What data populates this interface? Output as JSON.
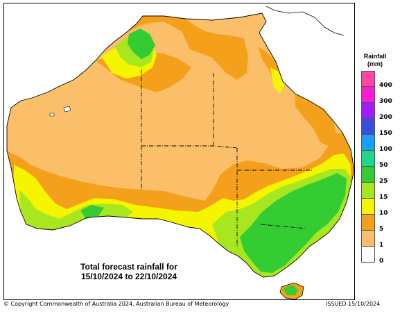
{
  "legend": {
    "title_line1": "Rainfall",
    "title_line2": "(mm)",
    "items": [
      {
        "label": "400",
        "color": "#ff47a3"
      },
      {
        "label": "300",
        "color": "#ff1ad9"
      },
      {
        "label": "200",
        "color": "#a31aff"
      },
      {
        "label": "150",
        "color": "#3d4ce0"
      },
      {
        "label": "100",
        "color": "#1a9fff"
      },
      {
        "label": "50",
        "color": "#1ad98a"
      },
      {
        "label": "25",
        "color": "#33cc33"
      },
      {
        "label": "15",
        "color": "#a8e620"
      },
      {
        "label": "10",
        "color": "#f5f500"
      },
      {
        "label": "5",
        "color": "#f5a01a"
      },
      {
        "label": "1",
        "color": "#fbbf6a"
      },
      {
        "label": "0",
        "color": "#ffffff"
      }
    ]
  },
  "caption": {
    "line1": "Total forecast rainfall for",
    "line2": "15/10/2024 to 22/10/2024"
  },
  "footer": {
    "copyright": "© Copyright Commonwealth of Australia 2024, Australian Bureau of Meteorology",
    "issued": "ISSUED 15/10/2024"
  }
}
